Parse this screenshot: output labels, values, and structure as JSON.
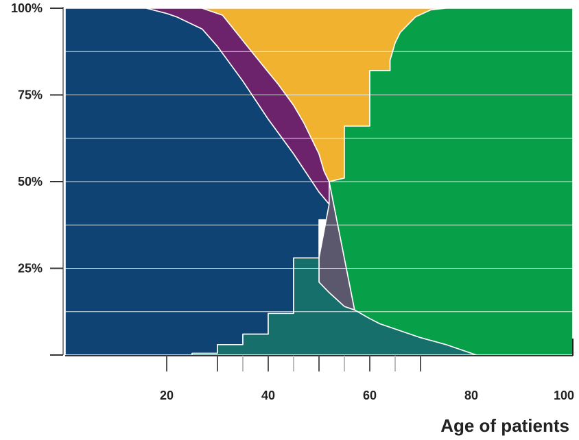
{
  "chart_data": {
    "type": "area",
    "stacked": true,
    "normalized": true,
    "title": "",
    "xlabel": "Age of patients",
    "ylabel": "",
    "xlim": [
      0,
      100
    ],
    "ylim": [
      0,
      100
    ],
    "x_ticks": [
      20,
      40,
      60,
      80,
      100
    ],
    "x_tick_labels": [
      "20",
      "40",
      "60",
      "80",
      "100"
    ],
    "y_ticks": [
      25,
      50,
      75,
      100
    ],
    "y_tick_labels": [
      "25%",
      "50%",
      "75%",
      "100%"
    ],
    "grid": "horizontal",
    "legend": "none",
    "regions": [
      {
        "color": "#0f4374",
        "polygon": [
          [
            0,
            0
          ],
          [
            0,
            100
          ],
          [
            16,
            100
          ],
          [
            20,
            98.5
          ],
          [
            22,
            97.5
          ],
          [
            27,
            94
          ],
          [
            30,
            89
          ],
          [
            35,
            79
          ],
          [
            40,
            68
          ],
          [
            45,
            58
          ],
          [
            50,
            47
          ],
          [
            52,
            43.5
          ],
          [
            52,
            39
          ],
          [
            50,
            39
          ],
          [
            50,
            28
          ],
          [
            45,
            28
          ],
          [
            45,
            12
          ],
          [
            40,
            12
          ],
          [
            40,
            6
          ],
          [
            35,
            6
          ],
          [
            35,
            3
          ],
          [
            30,
            3
          ],
          [
            30,
            0.5
          ],
          [
            25,
            0.5
          ],
          [
            25,
            0
          ]
        ]
      },
      {
        "color": "#6d226c",
        "polygon": [
          [
            16,
            100
          ],
          [
            27,
            100
          ],
          [
            31,
            98
          ],
          [
            37,
            87
          ],
          [
            42,
            78
          ],
          [
            45,
            72
          ],
          [
            47,
            67
          ],
          [
            50,
            58
          ],
          [
            51,
            53
          ],
          [
            52,
            50
          ],
          [
            52,
            43.5
          ],
          [
            50,
            47
          ],
          [
            45,
            58
          ],
          [
            40,
            68
          ],
          [
            35,
            79
          ],
          [
            30,
            89
          ],
          [
            27,
            94
          ],
          [
            22,
            97.5
          ],
          [
            20,
            98.5
          ]
        ]
      },
      {
        "color": "#f0b22f",
        "polygon": [
          [
            27,
            100
          ],
          [
            75,
            100
          ],
          [
            72,
            99.5
          ],
          [
            69,
            97.5
          ],
          [
            66,
            93
          ],
          [
            65,
            90
          ],
          [
            64,
            85
          ],
          [
            64,
            82
          ],
          [
            60,
            82
          ],
          [
            60,
            66
          ],
          [
            55,
            66
          ],
          [
            55,
            51
          ],
          [
            52,
            50
          ],
          [
            51,
            53
          ],
          [
            50,
            58
          ],
          [
            47,
            67
          ],
          [
            45,
            72
          ],
          [
            42,
            78
          ],
          [
            37,
            87
          ],
          [
            31,
            98
          ]
        ]
      },
      {
        "color": "#07a048",
        "polygon": [
          [
            75,
            100
          ],
          [
            100,
            100
          ],
          [
            100,
            0
          ],
          [
            81,
            0
          ],
          [
            75,
            3
          ],
          [
            70,
            5
          ],
          [
            66,
            7
          ],
          [
            62,
            9
          ],
          [
            60,
            10.5
          ],
          [
            57,
            13
          ],
          [
            52,
            50
          ],
          [
            55,
            51
          ],
          [
            55,
            66
          ],
          [
            60,
            66
          ],
          [
            60,
            82
          ],
          [
            64,
            82
          ],
          [
            64,
            85
          ],
          [
            65,
            90
          ],
          [
            66,
            93
          ],
          [
            69,
            97.5
          ],
          [
            72,
            99.5
          ]
        ]
      },
      {
        "color": "#5b586e",
        "polygon": [
          [
            52,
            50
          ],
          [
            57,
            13
          ],
          [
            55,
            14
          ],
          [
            52,
            18
          ],
          [
            50,
            21
          ],
          [
            50,
            28
          ],
          [
            52,
            43.5
          ]
        ]
      },
      {
        "color": "#166f6b",
        "polygon": [
          [
            25,
            0
          ],
          [
            25,
            0.5
          ],
          [
            30,
            0.5
          ],
          [
            30,
            3
          ],
          [
            35,
            3
          ],
          [
            35,
            6
          ],
          [
            40,
            6
          ],
          [
            40,
            12
          ],
          [
            45,
            12
          ],
          [
            45,
            28
          ],
          [
            50,
            28
          ],
          [
            50,
            21
          ],
          [
            52,
            18
          ],
          [
            55,
            14
          ],
          [
            57,
            13
          ],
          [
            60,
            10.5
          ],
          [
            62,
            9
          ],
          [
            66,
            7
          ],
          [
            70,
            5
          ],
          [
            75,
            3
          ],
          [
            81,
            0
          ]
        ]
      }
    ]
  }
}
